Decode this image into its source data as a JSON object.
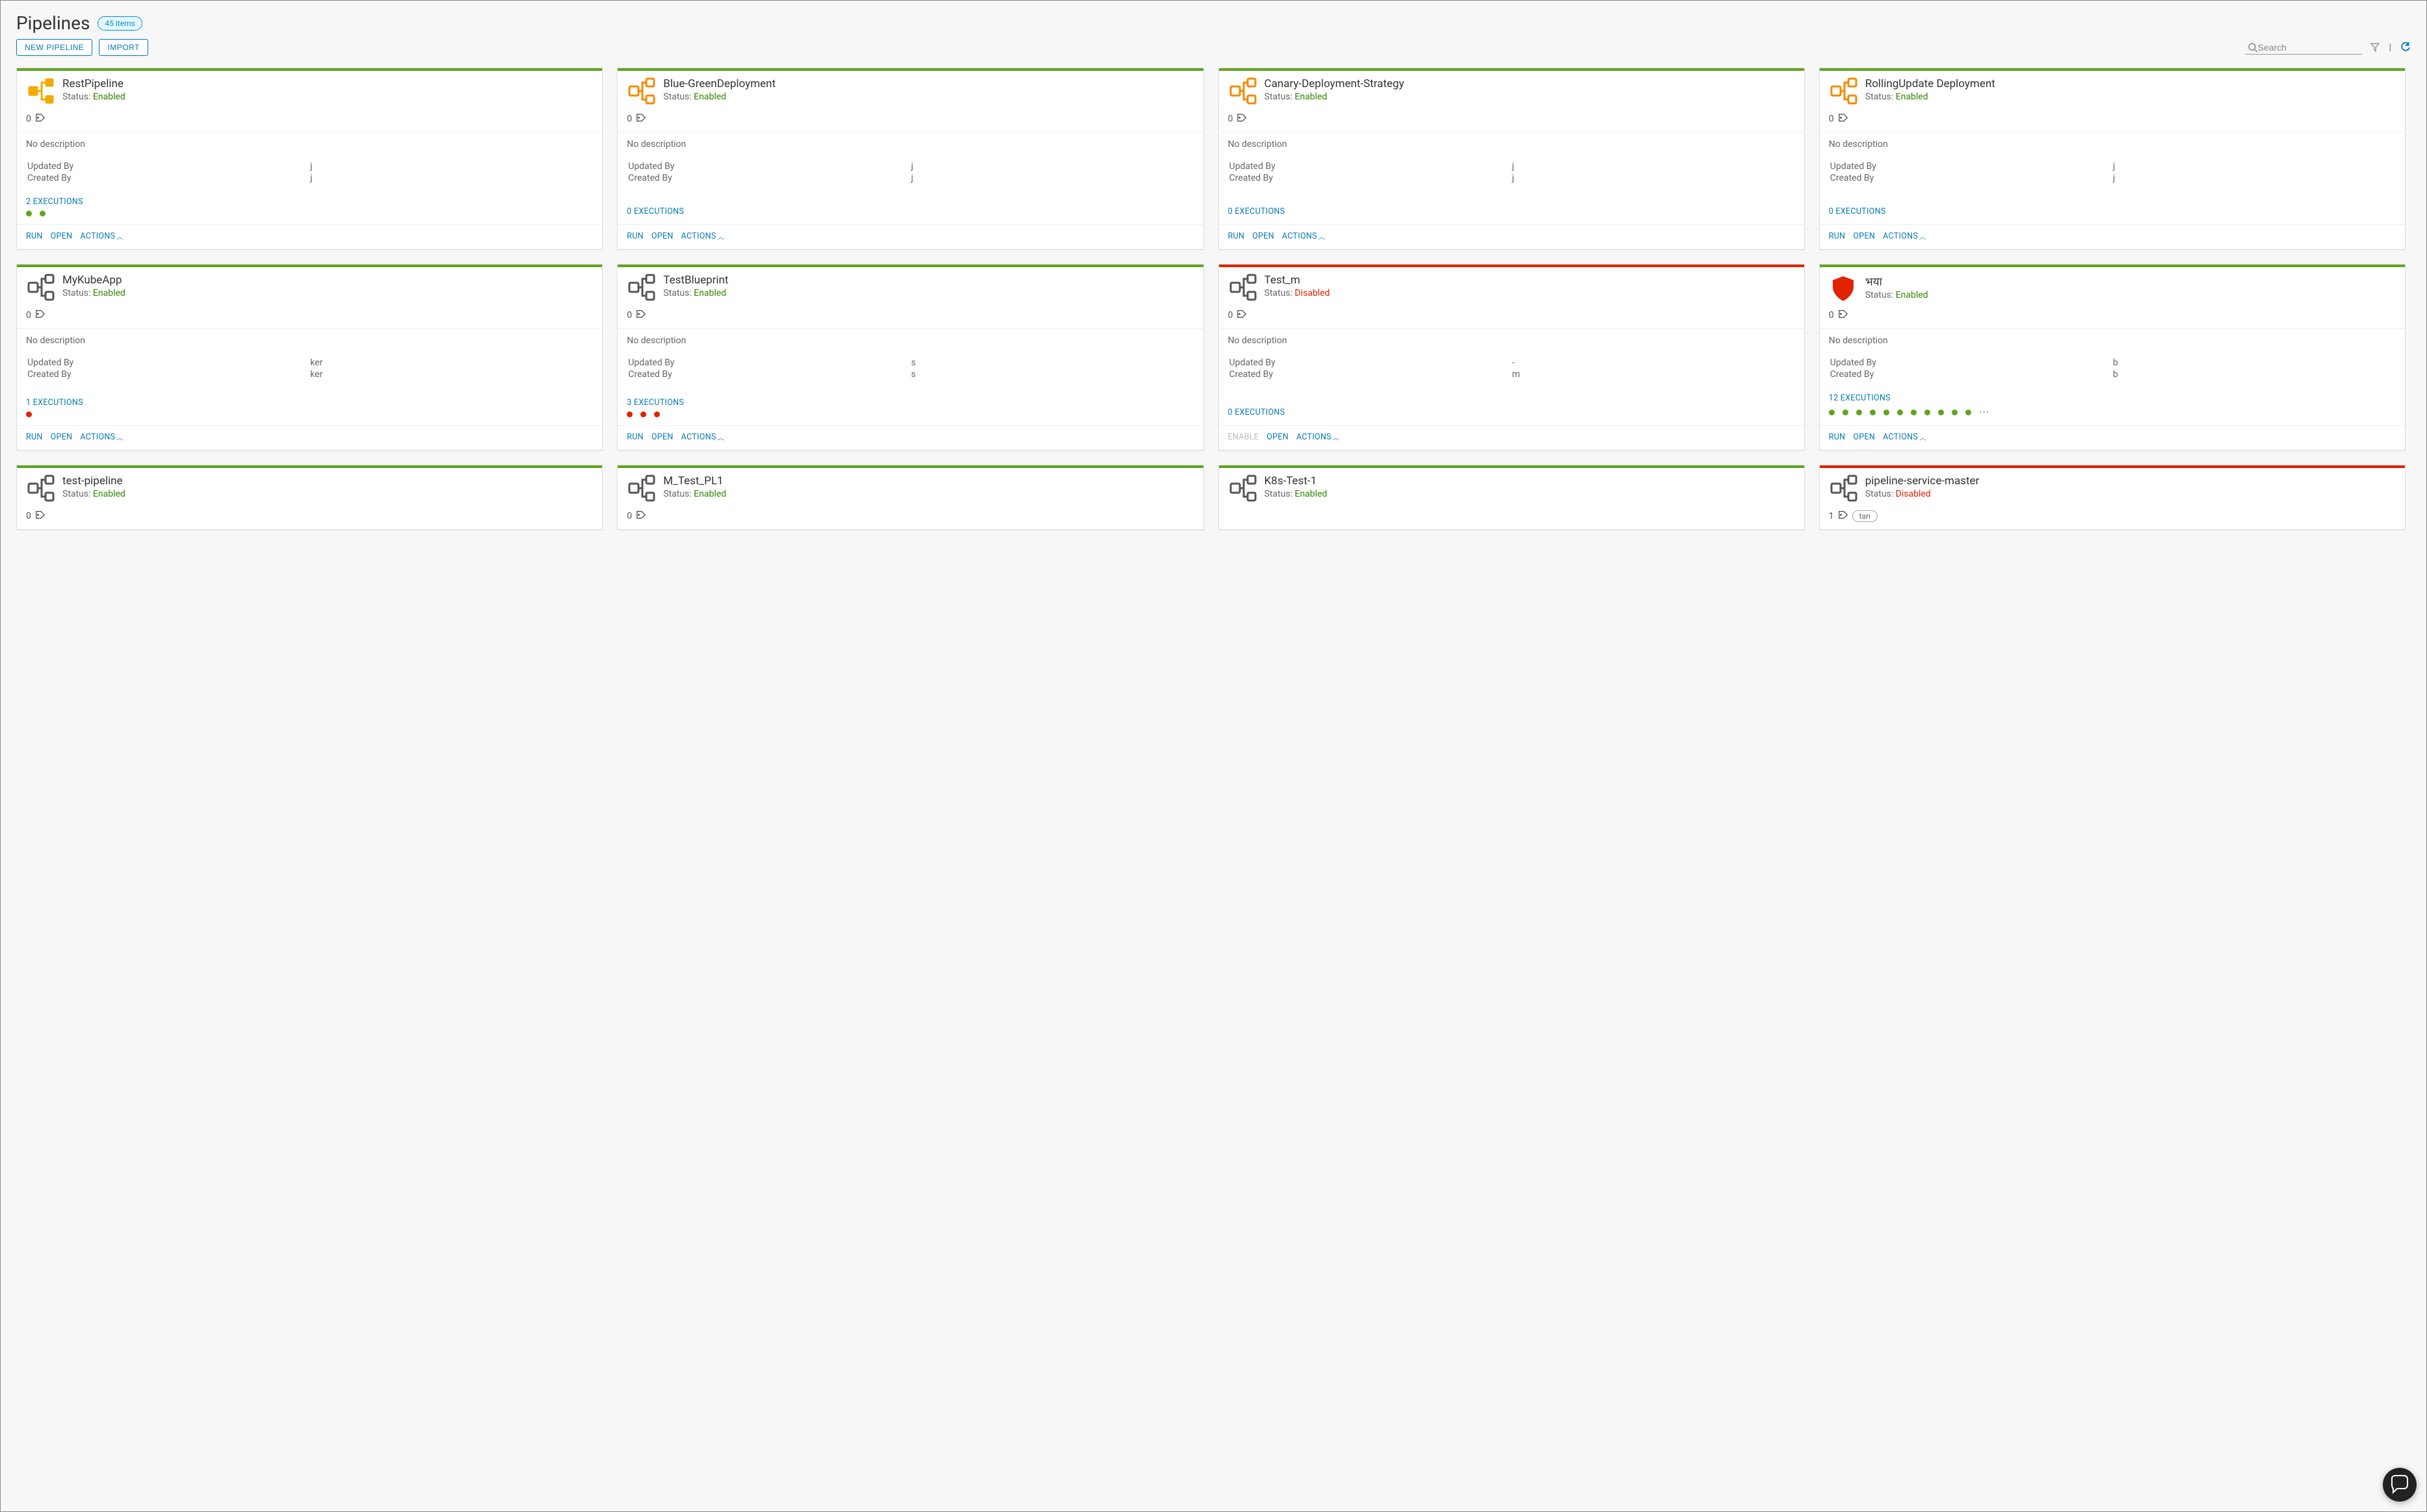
{
  "header": {
    "title": "Pipelines",
    "item_count_label": "45 items"
  },
  "toolbar": {
    "new_pipeline_label": "NEW PIPELINE",
    "import_label": "IMPORT",
    "search_placeholder": "Search"
  },
  "labels": {
    "status_prefix": "Status:",
    "no_description": "No description",
    "updated_by": "Updated By",
    "created_by": "Created By",
    "run": "RUN",
    "open": "OPEN",
    "actions": "ACTIONS",
    "enable": "ENABLE"
  },
  "status_colors": {
    "enabled": "#318700",
    "disabled": "#e12200"
  },
  "top_bar_colors": {
    "green": "#62a420",
    "red": "#e12200"
  },
  "icons": {
    "pipeline_default_color": "#565656",
    "pipeline_highlight_color": "#f38b00",
    "pipeline_yellow_color": "#f0ab00",
    "shield_color": "#e12200"
  },
  "cards": [
    {
      "title": "RestPipeline",
      "status": "Enabled",
      "status_class": "status-enabled",
      "bar_class": "bar-green",
      "icon": "pipeline-yellow",
      "tag_count": "0",
      "tags": [],
      "description": "No description",
      "updated_by": "j",
      "created_by": "j",
      "executions_label": "2 EXECUTIONS",
      "dots": [
        "green",
        "green"
      ],
      "run_enabled": true
    },
    {
      "title": "Blue-GreenDeployment",
      "status": "Enabled",
      "status_class": "status-enabled",
      "bar_class": "bar-green",
      "icon": "pipeline-orange",
      "tag_count": "0",
      "tags": [],
      "description": "No description",
      "updated_by": "j",
      "created_by": "j",
      "executions_label": "0 EXECUTIONS",
      "dots": [],
      "run_enabled": true
    },
    {
      "title": "Canary-Deployment-Strategy",
      "status": "Enabled",
      "status_class": "status-enabled",
      "bar_class": "bar-green",
      "icon": "pipeline-orange",
      "tag_count": "0",
      "tags": [],
      "description": "No description",
      "updated_by": "j",
      "created_by": "j",
      "executions_label": "0 EXECUTIONS",
      "dots": [],
      "run_enabled": true
    },
    {
      "title": "RollingUpdate Deployment",
      "status": "Enabled",
      "status_class": "status-enabled",
      "bar_class": "bar-green",
      "icon": "pipeline-orange",
      "tag_count": "0",
      "tags": [],
      "description": "No description",
      "updated_by": "j",
      "created_by": "j",
      "executions_label": "0 EXECUTIONS",
      "dots": [],
      "run_enabled": true
    },
    {
      "title": "MyKubeApp",
      "status": "Enabled",
      "status_class": "status-enabled",
      "bar_class": "bar-green",
      "icon": "pipeline-default",
      "tag_count": "0",
      "tags": [],
      "description": "No description",
      "updated_by": "ker",
      "created_by": "ker",
      "executions_label": "1 EXECUTIONS",
      "dots": [
        "red"
      ],
      "run_enabled": true
    },
    {
      "title": "TestBlueprint",
      "status": "Enabled",
      "status_class": "status-enabled",
      "bar_class": "bar-green",
      "icon": "pipeline-default",
      "tag_count": "0",
      "tags": [],
      "description": "No description",
      "updated_by": "s",
      "created_by": "s",
      "executions_label": "3 EXECUTIONS",
      "dots": [
        "red",
        "red",
        "red"
      ],
      "run_enabled": true
    },
    {
      "title": "Test_m",
      "status": "Disabled",
      "status_class": "status-disabled",
      "bar_class": "bar-red",
      "icon": "pipeline-default",
      "tag_count": "0",
      "tags": [],
      "description": "No description",
      "updated_by": "-",
      "created_by": "m",
      "executions_label": "0 EXECUTIONS",
      "dots": [],
      "run_enabled": false
    },
    {
      "title": "भया",
      "status": "Enabled",
      "status_class": "status-enabled",
      "bar_class": "bar-green",
      "icon": "shield",
      "tag_count": "0",
      "tags": [],
      "description": "No description",
      "updated_by": "b",
      "created_by": "b",
      "executions_label": "12 EXECUTIONS",
      "dots": [
        "green",
        "green",
        "green",
        "green",
        "green",
        "green",
        "green",
        "green",
        "green",
        "green",
        "green"
      ],
      "dots_more": true,
      "run_enabled": true
    },
    {
      "title": "test-pipeline",
      "status": "Enabled",
      "status_class": "status-enabled",
      "bar_class": "bar-green",
      "icon": "pipeline-default",
      "tag_count": "0",
      "tags": [],
      "truncated": true
    },
    {
      "title": "M_Test_PL1",
      "status": "Enabled",
      "status_class": "status-enabled",
      "bar_class": "bar-green",
      "icon": "pipeline-default",
      "tag_count": "0",
      "tags": [],
      "truncated": true
    },
    {
      "title": "K8s-Test-1",
      "status": "Enabled",
      "status_class": "status-enabled",
      "bar_class": "bar-green",
      "icon": "pipeline-default",
      "tag_count": "0",
      "tags": [],
      "truncated": true,
      "hide_tag_row": true
    },
    {
      "title": "pipeline-service-master",
      "status": "Disabled",
      "status_class": "status-disabled",
      "bar_class": "bar-red",
      "icon": "pipeline-default",
      "tag_count": "1",
      "tags": [
        "tan"
      ],
      "truncated": true
    }
  ]
}
